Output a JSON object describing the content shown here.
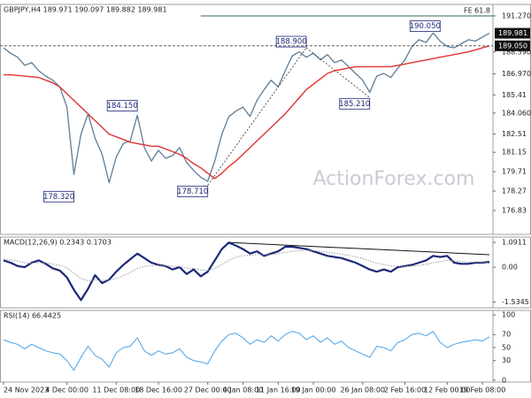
{
  "chart_data": [
    {
      "type": "line",
      "title": "GBPJPY,H4  189.971 190.097 189.882 189.981",
      "watermark": "ActionForex.com",
      "xlim": [
        -0.5,
        69.5
      ],
      "xticks": [
        {
          "value": 0,
          "label": "24 Nov 2023"
        },
        {
          "value": 9,
          "label": "4 Dec 00:00"
        },
        {
          "value": 16,
          "label": "11 Dec 08:00"
        },
        {
          "value": 22,
          "label": "18 Dec 16:00"
        },
        {
          "value": 29,
          "label": "27 Dec 00:00"
        },
        {
          "value": 34,
          "label": "4 Jan 08:00"
        },
        {
          "value": 39,
          "label": "11 Jan 16:00"
        },
        {
          "value": 44,
          "label": "19 Jan 00:00"
        },
        {
          "value": 51,
          "label": "26 Jan 08:00"
        },
        {
          "value": 57,
          "label": "2 Feb 16:00"
        },
        {
          "value": 63,
          "label": "12 Feb 00:00"
        },
        {
          "value": 68,
          "label": "19 Feb 08:00"
        }
      ],
      "ylim": [
        175.06,
        192.12
      ],
      "yticks": [
        {
          "value": 191.27,
          "label": "191.270"
        },
        {
          "value": 188.59,
          "label": "188.590"
        },
        {
          "value": 186.97,
          "label": "186.970"
        },
        185.41,
        {
          "value": 184.06,
          "label": "184.060"
        },
        182.51,
        181.15,
        179.71,
        178.27,
        176.83
      ],
      "series": [
        {
          "color": "#5d7d96",
          "width": 1.3,
          "values": [
            188.9,
            188.5,
            188.2,
            187.6,
            187.8,
            187.2,
            186.8,
            186.5,
            186.0,
            184.5,
            179.5,
            182.5,
            184.0,
            182.2,
            181.0,
            178.9,
            180.8,
            181.8,
            182.0,
            183.9,
            181.5,
            180.5,
            181.3,
            180.7,
            180.9,
            181.5,
            180.4,
            179.8,
            179.3,
            179.0,
            180.5,
            182.5,
            183.8,
            184.2,
            184.5,
            183.8,
            185.0,
            185.8,
            186.5,
            186.0,
            187.2,
            188.3,
            188.6,
            188.2,
            188.5,
            188.0,
            188.4,
            187.8,
            188.0,
            187.5,
            187.0,
            186.5,
            185.6,
            186.8,
            187.0,
            186.7,
            187.4,
            188.0,
            189.0,
            189.5,
            189.3,
            190.0,
            189.4,
            189.0,
            188.9,
            189.2,
            189.5,
            189.4,
            189.7,
            189.98
          ]
        },
        {
          "color": "#e03232",
          "width": 1.4,
          "values": [
            186.9,
            186.9,
            186.85,
            186.8,
            186.75,
            186.7,
            186.5,
            186.3,
            186.0,
            185.5,
            185.0,
            184.5,
            184.0,
            183.5,
            183.0,
            182.5,
            182.3,
            182.1,
            181.9,
            181.8,
            181.7,
            181.6,
            181.6,
            181.4,
            181.2,
            181.0,
            180.7,
            180.3,
            180.0,
            179.6,
            179.2,
            179.6,
            180.1,
            180.5,
            181.0,
            181.5,
            182.0,
            182.5,
            183.0,
            183.5,
            184.0,
            184.6,
            185.2,
            185.8,
            186.2,
            186.6,
            187.0,
            187.2,
            187.3,
            187.4,
            187.5,
            187.5,
            187.5,
            187.5,
            187.5,
            187.5,
            187.6,
            187.7,
            187.8,
            187.9,
            188.0,
            188.1,
            188.2,
            188.3,
            188.4,
            188.5,
            188.6,
            188.75,
            188.9,
            189.05
          ]
        }
      ],
      "annotations": [
        {
          "x": 43,
          "value": 188.9,
          "label": "188.900"
        },
        {
          "x": 62,
          "value": 190.05,
          "label": "190.050"
        },
        {
          "x": 19,
          "value": 184.15,
          "label": "184.150"
        },
        {
          "x": 10,
          "value": 178.32,
          "label": "178.320"
        },
        {
          "x": 29,
          "value": 178.71,
          "label": "178.710"
        },
        {
          "x": 52,
          "value": 185.21,
          "label": "185.210"
        }
      ],
      "fe_level": {
        "text": "FE 61.8",
        "value": 191.27,
        "from": 28
      },
      "markers": [
        {
          "value": 189.981,
          "label": "189.981"
        },
        {
          "value": 189.05,
          "label": "189.050",
          "style": "dashed"
        }
      ]
    },
    {
      "type": "line",
      "title": "MACD(12,26,9) 0.2343 0.1703",
      "xlim": [
        -0.5,
        69.5
      ],
      "ylim": [
        -1.79,
        1.33
      ],
      "yticks": [
        1.0911,
        {
          "value": 0,
          "label": "0.00"
        },
        -1.5345
      ],
      "series": [
        {
          "color": "#1c2878",
          "width": 2.2,
          "values": [
            0.3,
            0.2,
            0.05,
            0.0,
            0.2,
            0.3,
            0.15,
            -0.05,
            -0.15,
            -0.45,
            -1.0,
            -1.45,
            -0.95,
            -0.35,
            -0.7,
            -0.55,
            -0.2,
            0.1,
            0.35,
            0.6,
            0.4,
            0.2,
            0.1,
            0.05,
            -0.1,
            0.0,
            -0.3,
            -0.1,
            -0.4,
            -0.2,
            0.3,
            0.8,
            1.09,
            0.95,
            0.8,
            0.6,
            0.7,
            0.5,
            0.6,
            0.7,
            0.9,
            0.9,
            0.85,
            0.8,
            0.7,
            0.6,
            0.5,
            0.45,
            0.4,
            0.3,
            0.2,
            0.05,
            -0.1,
            -0.2,
            -0.1,
            -0.2,
            0.0,
            0.05,
            0.1,
            0.2,
            0.3,
            0.5,
            0.45,
            0.5,
            0.2,
            0.15,
            0.15,
            0.2,
            0.2,
            0.2343
          ]
        },
        {
          "color": "#9a9a9a",
          "width": 1,
          "style": "dotted",
          "values": [
            0.35,
            0.32,
            0.27,
            0.2,
            0.18,
            0.2,
            0.19,
            0.14,
            0.08,
            -0.03,
            -0.25,
            -0.5,
            -0.6,
            -0.55,
            -0.58,
            -0.57,
            -0.5,
            -0.38,
            -0.23,
            -0.06,
            0.03,
            0.07,
            0.08,
            0.07,
            0.04,
            0.03,
            -0.04,
            -0.05,
            -0.12,
            -0.14,
            -0.05,
            0.12,
            0.31,
            0.44,
            0.51,
            0.53,
            0.56,
            0.55,
            0.56,
            0.59,
            0.65,
            0.7,
            0.73,
            0.74,
            0.73,
            0.7,
            0.66,
            0.62,
            0.58,
            0.52,
            0.46,
            0.38,
            0.28,
            0.18,
            0.12,
            0.05,
            0.04,
            0.04,
            0.05,
            0.08,
            0.12,
            0.2,
            0.25,
            0.3,
            0.28,
            0.25,
            0.23,
            0.22,
            0.22,
            0.1703
          ]
        }
      ],
      "trendline": {
        "x": [
          32,
          69
        ],
        "values": [
          1.09,
          0.55
        ]
      }
    },
    {
      "type": "line",
      "title": "RSI(14) 66.4425",
      "xlim": [
        -0.5,
        69.5
      ],
      "ylim": [
        -3,
        107
      ],
      "yticks": [
        100,
        70,
        50,
        30,
        0
      ],
      "series": [
        {
          "color": "#4aa3e8",
          "width": 1,
          "values": [
            62,
            58,
            55,
            48,
            55,
            50,
            45,
            42,
            40,
            30,
            15,
            35,
            52,
            38,
            32,
            20,
            42,
            50,
            52,
            65,
            45,
            38,
            45,
            40,
            42,
            48,
            35,
            30,
            28,
            25,
            45,
            60,
            70,
            72,
            65,
            55,
            62,
            58,
            68,
            60,
            70,
            75,
            72,
            62,
            68,
            58,
            65,
            55,
            60,
            50,
            45,
            40,
            35,
            52,
            50,
            45,
            58,
            62,
            70,
            72,
            68,
            75,
            58,
            50,
            55,
            58,
            60,
            62,
            60,
            66.4425
          ]
        }
      ]
    }
  ]
}
